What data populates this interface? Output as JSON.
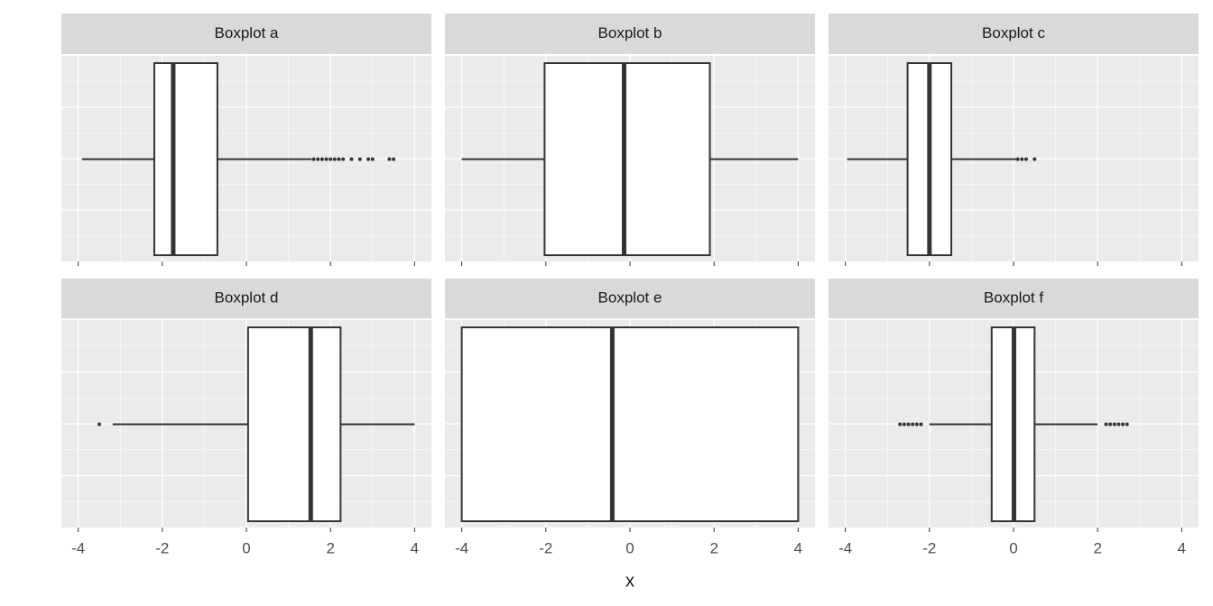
{
  "chart_data": {
    "type": "boxplot",
    "xlabel": "x",
    "xlim": [
      -4.4,
      4.4
    ],
    "xticks": [
      -4,
      -2,
      0,
      2,
      4
    ],
    "grid": true,
    "panels": [
      {
        "title": "Boxplot a",
        "min": -3.91,
        "q1": -2.19,
        "median": -1.74,
        "q3": -0.69,
        "max": 1.55,
        "outliers": [
          1.6,
          1.7,
          1.8,
          1.9,
          2.0,
          2.1,
          2.2,
          2.3,
          2.5,
          2.7,
          2.9,
          3.0,
          3.4,
          3.5
        ]
      },
      {
        "title": "Boxplot b",
        "min": -4.0,
        "q1": -2.03,
        "median": -0.14,
        "q3": 1.9,
        "max": 4.0,
        "outliers": []
      },
      {
        "title": "Boxplot c",
        "min": -3.96,
        "q1": -2.52,
        "median": -2.0,
        "q3": -1.48,
        "max": 0.06,
        "outliers": [
          0.1,
          0.2,
          0.3,
          0.5
        ]
      },
      {
        "title": "Boxplot d",
        "min": -3.18,
        "q1": 0.04,
        "median": 1.53,
        "q3": 2.24,
        "max": 4.0,
        "outliers": [
          -3.5
        ]
      },
      {
        "title": "Boxplot e",
        "min": -4.0,
        "q1": -4.0,
        "median": -0.42,
        "q3": 4.0,
        "max": 4.0,
        "outliers": []
      },
      {
        "title": "Boxplot f",
        "min": -2.0,
        "q1": -0.52,
        "median": 0.01,
        "q3": 0.5,
        "max": 2.0,
        "outliers": [
          -2.7,
          -2.6,
          -2.5,
          -2.4,
          -2.3,
          -2.2,
          2.2,
          2.3,
          2.4,
          2.5,
          2.6,
          2.7
        ]
      }
    ]
  }
}
